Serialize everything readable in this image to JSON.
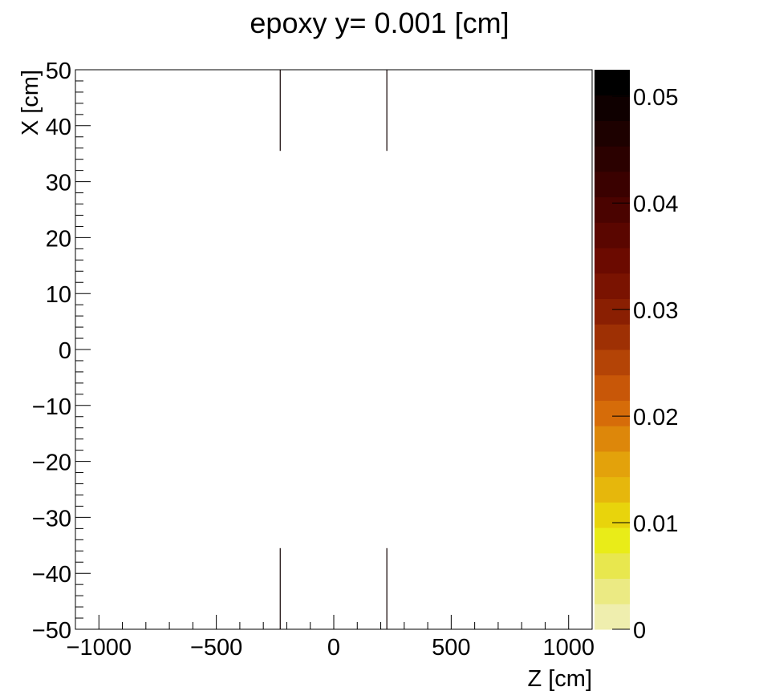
{
  "chart_data": {
    "type": "heatmap",
    "title": "epoxy y=  0.001 [cm]",
    "xlabel": "Z [cm]",
    "ylabel": "X [cm]",
    "xlim": [
      -1100,
      1100
    ],
    "ylim": [
      -50,
      50
    ],
    "x_ticks": [
      {
        "value": -1000,
        "label": "−1000"
      },
      {
        "value": -500,
        "label": "−500"
      },
      {
        "value": 0,
        "label": "0"
      },
      {
        "value": 500,
        "label": "500"
      },
      {
        "value": 1000,
        "label": "1000"
      }
    ],
    "y_ticks": [
      {
        "value": 50,
        "label": "50"
      },
      {
        "value": 40,
        "label": "40"
      },
      {
        "value": 30,
        "label": "30"
      },
      {
        "value": 20,
        "label": "20"
      },
      {
        "value": 10,
        "label": "10"
      },
      {
        "value": 0,
        "label": "0"
      },
      {
        "value": -10,
        "label": "−10"
      },
      {
        "value": -20,
        "label": "−20"
      },
      {
        "value": -30,
        "label": "−30"
      },
      {
        "value": -40,
        "label": "−40"
      },
      {
        "value": -50,
        "label": "−50"
      }
    ],
    "segments": [
      {
        "x": -228,
        "y0": 35.5,
        "y1": 50,
        "value": 0.05
      },
      {
        "x": 226,
        "y0": 35.5,
        "y1": 50,
        "value": 0.05
      },
      {
        "x": -228,
        "y0": -50,
        "y1": -35.5,
        "value": 0.05
      },
      {
        "x": 226,
        "y0": -50,
        "y1": -35.5,
        "value": 0.05
      }
    ],
    "zlim": [
      0,
      0.0525
    ],
    "z_ticks": [
      {
        "value": 0,
        "label": "0"
      },
      {
        "value": 0.01,
        "label": "0.01"
      },
      {
        "value": 0.02,
        "label": "0.02"
      },
      {
        "value": 0.03,
        "label": "0.03"
      },
      {
        "value": 0.04,
        "label": "0.04"
      },
      {
        "value": 0.05,
        "label": "0.05"
      }
    ],
    "palette": [
      "#efeeae",
      "#ebea83",
      "#e8e74e",
      "#e9ec18",
      "#e8d40c",
      "#e6b70c",
      "#e3a20b",
      "#dd870a",
      "#d66c09",
      "#c85708",
      "#b44406",
      "#9e3004",
      "#8a1f02",
      "#7a1301",
      "#6b0a00",
      "#5a0600",
      "#4a0300",
      "#3a0100",
      "#2b0100",
      "#1d0100",
      "#0f0000",
      "#000000"
    ],
    "grid": false,
    "legend": "colorbar-right"
  }
}
